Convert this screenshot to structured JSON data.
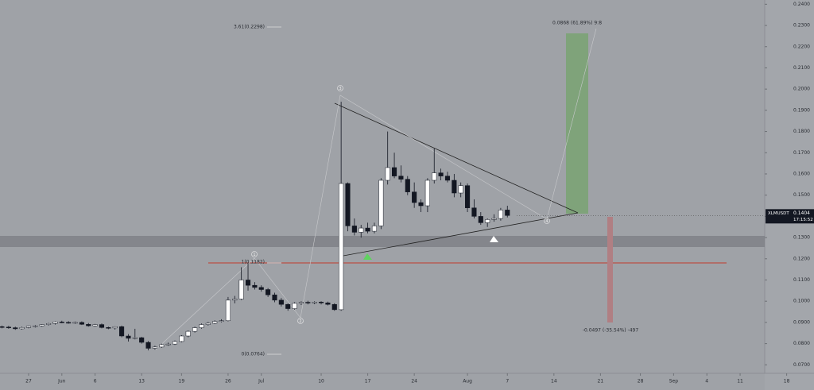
{
  "chart_data": {
    "type": "candlestick",
    "x": [
      -4,
      -3,
      -2,
      -1,
      0,
      1,
      2,
      3,
      4,
      5,
      6,
      7,
      8,
      9,
      10,
      11,
      12,
      13,
      14,
      15,
      16,
      17,
      18,
      19,
      20,
      21,
      22,
      23,
      24,
      25,
      26,
      27,
      28,
      29,
      30,
      31,
      32,
      33,
      34,
      35,
      36,
      37,
      38,
      39,
      40,
      41,
      42,
      43,
      44,
      45,
      46,
      47,
      48,
      49,
      50,
      51,
      52,
      53,
      54,
      55,
      56,
      57,
      58,
      59,
      60,
      61,
      62,
      63,
      64,
      65,
      66,
      67,
      68,
      69,
      70,
      71,
      72
    ],
    "open": [
      0.088,
      0.0878,
      0.0875,
      0.087,
      0.0876,
      0.0882,
      0.0884,
      0.089,
      0.0895,
      0.0902,
      0.09,
      0.0898,
      0.09,
      0.0891,
      0.0884,
      0.089,
      0.0876,
      0.0874,
      0.088,
      0.0836,
      0.0825,
      0.0828,
      0.0806,
      0.0778,
      0.0784,
      0.0795,
      0.0798,
      0.081,
      0.0836,
      0.0858,
      0.0875,
      0.089,
      0.0896,
      0.0905,
      0.0908,
      0.1005,
      0.101,
      0.11,
      0.1075,
      0.1065,
      0.1055,
      0.103,
      0.1005,
      0.0985,
      0.0965,
      0.099,
      0.0995,
      0.0992,
      0.0996,
      0.0992,
      0.0985,
      0.096,
      0.1555,
      0.1355,
      0.1325,
      0.1345,
      0.133,
      0.1355,
      0.157,
      0.163,
      0.159,
      0.1575,
      0.1515,
      0.1465,
      0.145,
      0.157,
      0.1605,
      0.159,
      0.157,
      0.151,
      0.1545,
      0.144,
      0.14,
      0.137,
      0.1385,
      0.139,
      0.143
    ],
    "high": [
      0.0885,
      0.0884,
      0.088,
      0.088,
      0.0884,
      0.0888,
      0.0892,
      0.0898,
      0.0905,
      0.0908,
      0.0906,
      0.0904,
      0.0905,
      0.0897,
      0.0893,
      0.0895,
      0.088,
      0.0882,
      0.0885,
      0.0845,
      0.087,
      0.0832,
      0.0812,
      0.079,
      0.08,
      0.0805,
      0.0815,
      0.084,
      0.0862,
      0.088,
      0.0895,
      0.0902,
      0.091,
      0.0915,
      0.102,
      0.1025,
      0.116,
      0.1182,
      0.109,
      0.1075,
      0.1062,
      0.104,
      0.1015,
      0.099,
      0.0995,
      0.1,
      0.1002,
      0.1,
      0.1,
      0.0998,
      0.099,
      0.194,
      0.156,
      0.139,
      0.136,
      0.137,
      0.137,
      0.158,
      0.18,
      0.17,
      0.164,
      0.159,
      0.156,
      0.148,
      0.158,
      0.172,
      0.1625,
      0.161,
      0.16,
      0.156,
      0.1555,
      0.148,
      0.142,
      0.139,
      0.141,
      0.144,
      0.145
    ],
    "low": [
      0.0872,
      0.087,
      0.0865,
      0.0866,
      0.0872,
      0.0876,
      0.088,
      0.0885,
      0.089,
      0.0896,
      0.0894,
      0.0893,
      0.0888,
      0.088,
      0.088,
      0.0872,
      0.0868,
      0.0866,
      0.083,
      0.081,
      0.082,
      0.08,
      0.0768,
      0.0772,
      0.078,
      0.079,
      0.0794,
      0.0806,
      0.083,
      0.0852,
      0.087,
      0.0885,
      0.0892,
      0.09,
      0.0905,
      0.099,
      0.1005,
      0.105,
      0.1055,
      0.1045,
      0.102,
      0.0995,
      0.0975,
      0.0955,
      0.096,
      0.0982,
      0.0985,
      0.0986,
      0.0985,
      0.098,
      0.0955,
      0.0955,
      0.133,
      0.131,
      0.13,
      0.132,
      0.132,
      0.134,
      0.155,
      0.158,
      0.156,
      0.15,
      0.144,
      0.142,
      0.142,
      0.1555,
      0.157,
      0.156,
      0.149,
      0.149,
      0.142,
      0.139,
      0.136,
      0.135,
      0.1375,
      0.138,
      0.1395
    ],
    "close": [
      0.0878,
      0.0875,
      0.087,
      0.0876,
      0.0882,
      0.0884,
      0.089,
      0.0895,
      0.0902,
      0.09,
      0.0898,
      0.09,
      0.0891,
      0.0884,
      0.089,
      0.0876,
      0.0874,
      0.088,
      0.0836,
      0.0825,
      0.0828,
      0.0806,
      0.0778,
      0.0784,
      0.0795,
      0.0798,
      0.081,
      0.0836,
      0.0858,
      0.0875,
      0.089,
      0.0896,
      0.0905,
      0.0908,
      0.1005,
      0.101,
      0.11,
      0.1075,
      0.1065,
      0.1055,
      0.103,
      0.1005,
      0.0985,
      0.0965,
      0.099,
      0.0995,
      0.0992,
      0.0996,
      0.0992,
      0.0985,
      0.096,
      0.1555,
      0.1355,
      0.1325,
      0.1345,
      0.133,
      0.1355,
      0.157,
      0.163,
      0.159,
      0.1575,
      0.1515,
      0.1465,
      0.145,
      0.157,
      0.1605,
      0.159,
      0.157,
      0.151,
      0.1545,
      0.144,
      0.14,
      0.137,
      0.1385,
      0.139,
      0.143,
      0.1404
    ],
    "up_color": "#ffffff",
    "down_color": "#131722",
    "xlim": [
      -4.3,
      110.7
    ],
    "xticks": [
      {
        "value": 0,
        "label": "27"
      },
      {
        "value": 5,
        "label": "Jun"
      },
      {
        "value": 10,
        "label": "6"
      },
      {
        "value": 17,
        "label": "13"
      },
      {
        "value": 23,
        "label": "19"
      },
      {
        "value": 30,
        "label": "26"
      },
      {
        "value": 35,
        "label": "Jul"
      },
      {
        "value": 44,
        "label": "10"
      },
      {
        "value": 51,
        "label": "17"
      },
      {
        "value": 58,
        "label": "24"
      },
      {
        "value": 66,
        "label": "Aug"
      },
      {
        "value": 72,
        "label": "7"
      },
      {
        "value": 79,
        "label": "14"
      },
      {
        "value": 86,
        "label": "21"
      },
      {
        "value": 92,
        "label": "28"
      },
      {
        "value": 97,
        "label": "Sep"
      },
      {
        "value": 102,
        "label": "4"
      },
      {
        "value": 107,
        "label": "11"
      },
      {
        "value": 114,
        "label": "18"
      }
    ],
    "ylim": [
      0.066,
      0.242
    ],
    "yticks": [
      {
        "value": 0.07,
        "label": "0.0700"
      },
      {
        "value": 0.08,
        "label": "0.0800"
      },
      {
        "value": 0.09,
        "label": "0.0900"
      },
      {
        "value": 0.1,
        "label": "0.1000"
      },
      {
        "value": 0.11,
        "label": "0.1100"
      },
      {
        "value": 0.12,
        "label": "0.1200"
      },
      {
        "value": 0.13,
        "label": "0.1300"
      },
      {
        "value": 0.14,
        "label": "0.1400"
      },
      {
        "value": 0.15,
        "label": "0.1500"
      },
      {
        "value": 0.16,
        "label": "0.1600"
      },
      {
        "value": 0.17,
        "label": "0.1700"
      },
      {
        "value": 0.18,
        "label": "0.1800"
      },
      {
        "value": 0.19,
        "label": "0.1900"
      },
      {
        "value": 0.2,
        "label": "0.2000"
      },
      {
        "value": 0.21,
        "label": "0.2100"
      },
      {
        "value": 0.22,
        "label": "0.2200"
      },
      {
        "value": 0.23,
        "label": "0.2300"
      },
      {
        "value": 0.24,
        "label": "0.2400"
      }
    ],
    "last_price": {
      "symbol": "XLMUSDT",
      "value": 0.1404,
      "countdown": "17:15:52"
    },
    "annotations": [
      "3.61(0.2298)",
      "1(0.1182)",
      "0(0.0764)",
      "0.0868 (61.89%) 9:8",
      "-0.0497 (-35.54%) -497",
      "1",
      "2",
      "3",
      "4"
    ]
  }
}
